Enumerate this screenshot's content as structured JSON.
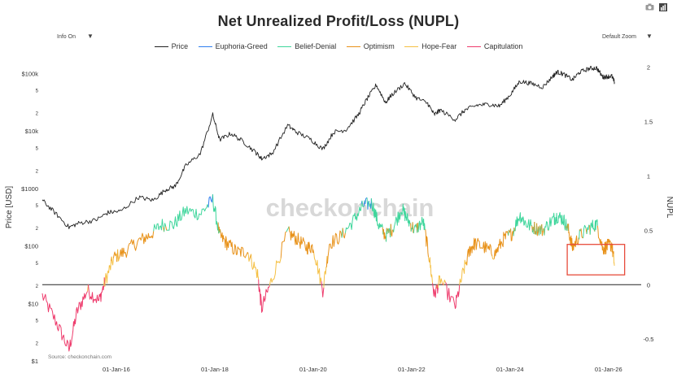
{
  "title": "Net Unrealized Profit/Loss (NUPL)",
  "controls": {
    "info_label": "Info On",
    "zoom_label": "Default Zoom",
    "camera_icon": "camera-icon",
    "chart_icon": "bar-chart-icon"
  },
  "legend": [
    {
      "label": "Price",
      "color": "#222222"
    },
    {
      "label": "Euphoria-Greed",
      "color": "#2f7ff0"
    },
    {
      "label": "Belief-Denial",
      "color": "#3fd69c"
    },
    {
      "label": "Optimism",
      "color": "#e8921a"
    },
    {
      "label": "Hope-Fear",
      "color": "#f5c044"
    },
    {
      "label": "Capitulation",
      "color": "#ee3b6c"
    }
  ],
  "axes": {
    "left_title": "Price [USD]",
    "right_title": "NUPL",
    "left_major": [
      "$1",
      "$10",
      "$100",
      "$1000",
      "$10k",
      "$100k"
    ],
    "left_minor": [
      "2",
      "5"
    ],
    "right_ticks": [
      "-0.5",
      "0",
      "0.5",
      "1",
      "1.5",
      "2"
    ],
    "x_ticks": [
      "01-Jan-16",
      "01-Jan-18",
      "01-Jan-20",
      "01-Jan-22",
      "01-Jan-24",
      "01-Jan-26"
    ]
  },
  "watermark": "checkonchain",
  "source": "Source: checkonchain.com",
  "chart_data": {
    "type": "line",
    "title": "Net Unrealized Profit/Loss (NUPL)",
    "xlabel": "",
    "ylabel": "Price [USD]",
    "y2label": "NUPL",
    "y_scale": "log",
    "ylim": [
      1,
      200000
    ],
    "y2lim": [
      -0.7,
      2.1
    ],
    "xlim": [
      "2014-07-01",
      "2026-09-01"
    ],
    "grid": false,
    "legend_position": "top-center",
    "reference_line": {
      "axis": "y2",
      "value": 0
    },
    "highlight_box": {
      "x_from": "2025-03-01",
      "x_to": "2026-05-01",
      "y2_from": 0.09,
      "y2_to": 0.37,
      "color": "#e74c3c"
    },
    "price_series": {
      "name": "Price",
      "x": [
        "2014-07-01",
        "2014-10-01",
        "2015-01-15",
        "2015-04-01",
        "2015-08-01",
        "2015-11-01",
        "2016-02-01",
        "2016-06-15",
        "2016-10-01",
        "2017-01-01",
        "2017-03-15",
        "2017-06-01",
        "2017-09-15",
        "2017-12-17",
        "2018-02-06",
        "2018-05-01",
        "2018-08-01",
        "2018-11-01",
        "2018-12-15",
        "2019-03-01",
        "2019-06-26",
        "2019-09-01",
        "2019-12-15",
        "2020-03-13",
        "2020-06-01",
        "2020-09-01",
        "2020-12-01",
        "2021-02-01",
        "2021-04-14",
        "2021-06-22",
        "2021-08-01",
        "2021-11-10",
        "2022-02-01",
        "2022-05-01",
        "2022-06-18",
        "2022-08-01",
        "2022-11-21",
        "2023-02-01",
        "2023-05-01",
        "2023-08-01",
        "2023-10-15",
        "2024-01-01",
        "2024-03-14",
        "2024-06-01",
        "2024-09-01",
        "2024-11-15",
        "2024-12-17",
        "2025-02-01",
        "2025-04-09",
        "2025-06-01",
        "2025-08-14",
        "2025-10-06",
        "2025-11-20",
        "2025-12-20",
        "2026-01-25",
        "2026-02-15"
      ],
      "values": [
        620,
        380,
        210,
        250,
        280,
        380,
        400,
        700,
        620,
        950,
        1100,
        2500,
        4000,
        19000,
        7000,
        9000,
        6500,
        4200,
        3300,
        4000,
        12500,
        9500,
        7100,
        4800,
        9500,
        10500,
        19000,
        35000,
        63000,
        31000,
        41000,
        67000,
        38000,
        30000,
        19000,
        23000,
        15800,
        23000,
        28000,
        29000,
        27000,
        42000,
        73000,
        67000,
        58000,
        90000,
        106000,
        97000,
        77000,
        105000,
        122000,
        124000,
        86000,
        88000,
        90000,
        70000
      ]
    },
    "nupl_series": {
      "name": "NUPL",
      "x": [
        "2014-07-01",
        "2014-10-15",
        "2015-01-15",
        "2015-03-15",
        "2015-06-01",
        "2015-08-25",
        "2015-10-15",
        "2015-12-15",
        "2016-03-01",
        "2016-06-15",
        "2016-09-01",
        "2016-12-01",
        "2017-03-01",
        "2017-06-01",
        "2017-09-15",
        "2017-12-17",
        "2018-02-06",
        "2018-04-01",
        "2018-06-15",
        "2018-09-01",
        "2018-11-15",
        "2018-12-15",
        "2019-03-01",
        "2019-06-26",
        "2019-09-01",
        "2019-11-15",
        "2020-01-01",
        "2020-03-13",
        "2020-05-01",
        "2020-08-01",
        "2020-11-01",
        "2021-01-08",
        "2021-03-13",
        "2021-05-01",
        "2021-06-22",
        "2021-08-15",
        "2021-10-20",
        "2021-12-01",
        "2022-01-24",
        "2022-03-28",
        "2022-05-12",
        "2022-06-18",
        "2022-08-01",
        "2022-11-21",
        "2023-01-15",
        "2023-03-10",
        "2023-04-15",
        "2023-07-01",
        "2023-09-11",
        "2023-11-15",
        "2024-01-15",
        "2024-03-14",
        "2024-05-01",
        "2024-07-05",
        "2024-09-01",
        "2024-11-15",
        "2024-12-17",
        "2025-02-01",
        "2025-03-10",
        "2025-04-09",
        "2025-06-01",
        "2025-08-14",
        "2025-10-06",
        "2025-11-20",
        "2025-12-20",
        "2026-01-25",
        "2026-02-15"
      ],
      "values": [
        -0.1,
        -0.35,
        -0.6,
        -0.25,
        -0.05,
        -0.15,
        0.05,
        0.25,
        0.3,
        0.4,
        0.45,
        0.55,
        0.55,
        0.68,
        0.65,
        0.78,
        0.45,
        0.38,
        0.3,
        0.3,
        0.1,
        -0.22,
        0.05,
        0.48,
        0.42,
        0.34,
        0.35,
        -0.05,
        0.38,
        0.45,
        0.6,
        0.73,
        0.75,
        0.55,
        0.45,
        0.52,
        0.7,
        0.6,
        0.5,
        0.58,
        0.25,
        -0.1,
        0.05,
        -0.2,
        0.1,
        0.32,
        0.38,
        0.34,
        0.28,
        0.42,
        0.47,
        0.64,
        0.56,
        0.52,
        0.5,
        0.6,
        0.63,
        0.6,
        0.5,
        0.34,
        0.45,
        0.52,
        0.56,
        0.33,
        0.35,
        0.37,
        0.18
      ],
      "zone_thresholds": {
        "capitulation_below": 0,
        "hope_fear_below": 0.25,
        "optimism_below": 0.5,
        "belief_denial_below": 0.75
      }
    }
  }
}
